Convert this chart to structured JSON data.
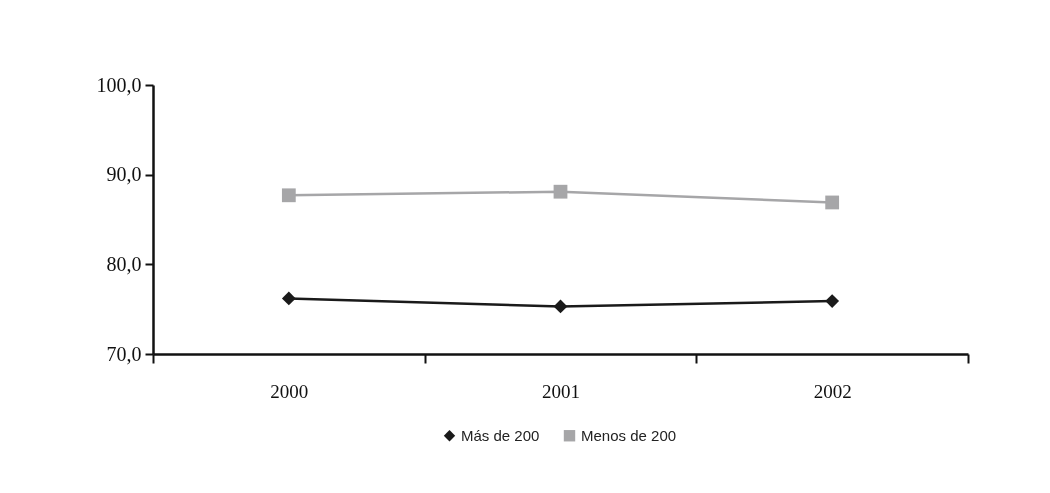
{
  "chart_data": {
    "type": "line",
    "categories": [
      "2000",
      "2001",
      "2002"
    ],
    "series": [
      {
        "name": "Más de 200",
        "color": "#1a1a1a",
        "marker": "diamond",
        "values": [
          76.2,
          75.3,
          75.9
        ]
      },
      {
        "name": "Menos de 200",
        "color": "#a6a6a8",
        "marker": "square",
        "values": [
          87.7,
          88.1,
          86.9
        ]
      }
    ],
    "ylim": [
      70,
      100
    ],
    "yticks": [
      {
        "value": 70,
        "label": "70,0"
      },
      {
        "value": 80,
        "label": "80,0"
      },
      {
        "value": 90,
        "label": "90,0"
      },
      {
        "value": 100,
        "label": "100,0"
      }
    ],
    "grid": false,
    "legend": "bottom",
    "line_style": "solid"
  }
}
